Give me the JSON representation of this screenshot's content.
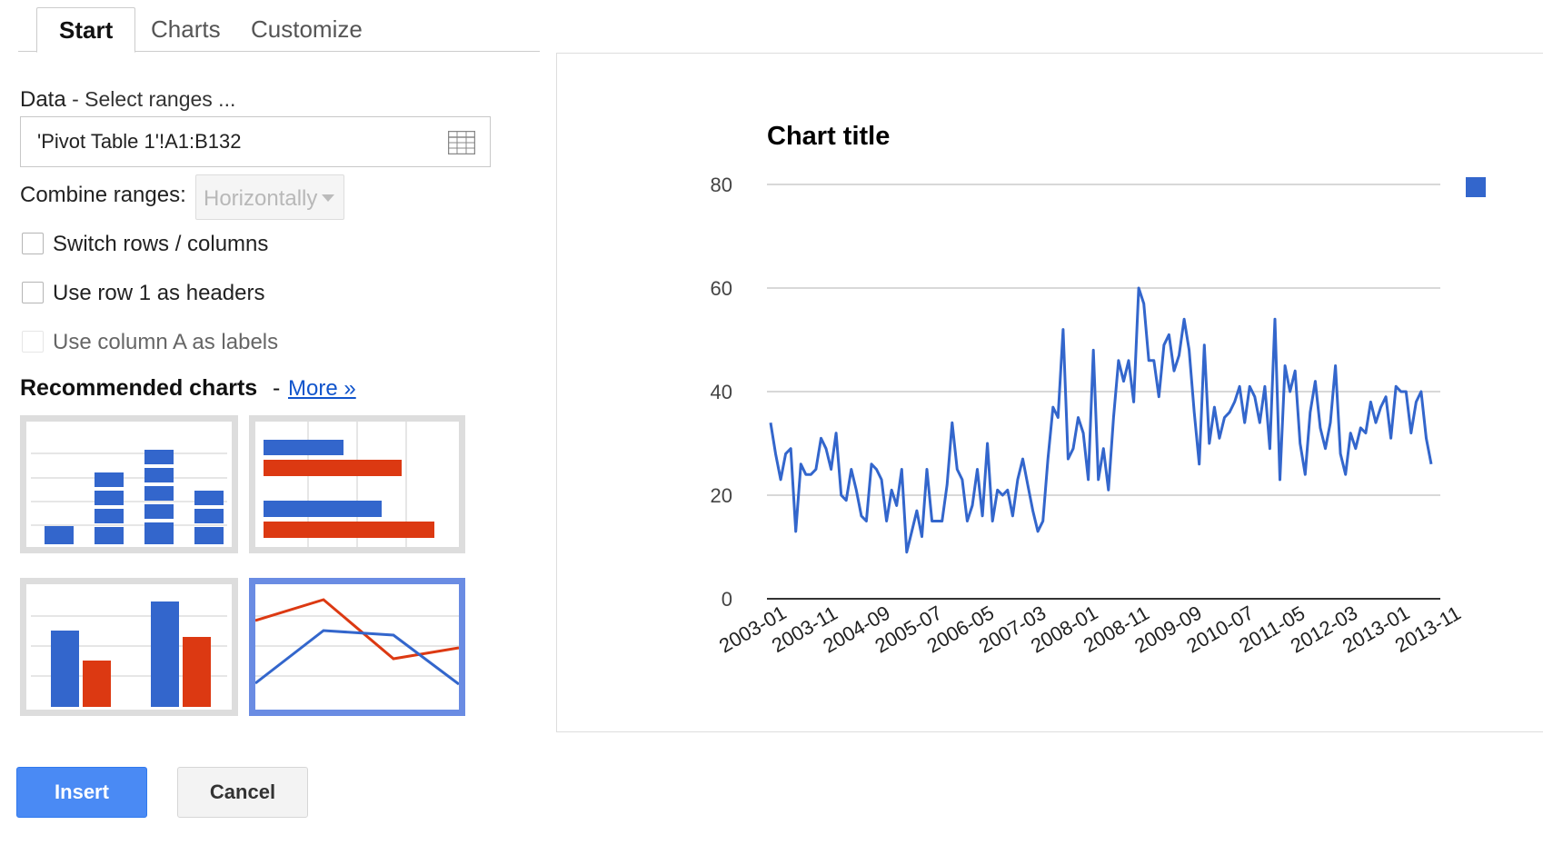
{
  "tabs": [
    {
      "label": "Start",
      "active": true
    },
    {
      "label": "Charts",
      "active": false
    },
    {
      "label": "Customize",
      "active": false
    }
  ],
  "data_section": {
    "label": "Data",
    "sublabel": "Select ranges ...",
    "range_value": "'Pivot Table 1'!A1:B132",
    "range_icon": "grid-icon"
  },
  "combine": {
    "label": "Combine ranges:",
    "value": "Horizontally"
  },
  "options": {
    "switch_rows": "Switch rows / columns",
    "row1_headers": "Use row 1 as headers",
    "colA_labels": "Use column A as labels"
  },
  "recommended": {
    "title": "Recommended charts",
    "more": "More »"
  },
  "buttons": {
    "insert": "Insert",
    "cancel": "Cancel"
  },
  "colors": {
    "accent": "#4a8af4",
    "series_blue": "#3366cc",
    "series_red": "#dc3912",
    "selected_border": "#6a8ce3"
  },
  "chart_data": {
    "type": "line",
    "title": "Chart title",
    "xlabel": "",
    "ylabel": "",
    "ylim": [
      0,
      80
    ],
    "yticks": [
      0,
      20,
      40,
      60,
      80
    ],
    "grid": true,
    "legend": "right (single swatch, no label)",
    "x_tick_labels": [
      "2003-01",
      "2003-11",
      "2004-09",
      "2005-07",
      "2006-05",
      "2007-03",
      "2008-01",
      "2008-11",
      "2009-09",
      "2010-07",
      "2011-05",
      "2012-03",
      "2013-01",
      "2013-11"
    ],
    "series": [
      {
        "color": "#3366cc",
        "values": [
          34,
          28,
          23,
          28,
          29,
          13,
          26,
          24,
          24,
          25,
          31,
          29,
          25,
          32,
          20,
          19,
          25,
          21,
          16,
          15,
          26,
          25,
          23,
          15,
          21,
          18,
          25,
          9,
          13,
          17,
          12,
          25,
          15,
          15,
          15,
          22,
          34,
          25,
          23,
          15,
          18,
          25,
          16,
          30,
          15,
          21,
          20,
          21,
          16,
          23,
          27,
          22,
          17,
          13,
          15,
          27,
          37,
          35,
          52,
          27,
          29,
          35,
          32,
          23,
          48,
          23,
          29,
          21,
          35,
          46,
          42,
          46,
          38,
          60,
          57,
          46,
          46,
          39,
          49,
          51,
          44,
          47,
          54,
          48,
          36,
          26,
          49,
          30,
          37,
          31,
          35,
          36,
          38,
          41,
          34,
          41,
          39,
          34,
          41,
          29,
          54,
          23,
          45,
          40,
          44,
          30,
          24,
          36,
          42,
          33,
          29,
          34,
          45,
          28,
          24,
          32,
          29,
          33,
          32,
          38,
          34,
          37,
          39,
          31,
          41,
          40,
          40,
          32,
          38,
          40,
          31,
          26
        ]
      }
    ]
  }
}
